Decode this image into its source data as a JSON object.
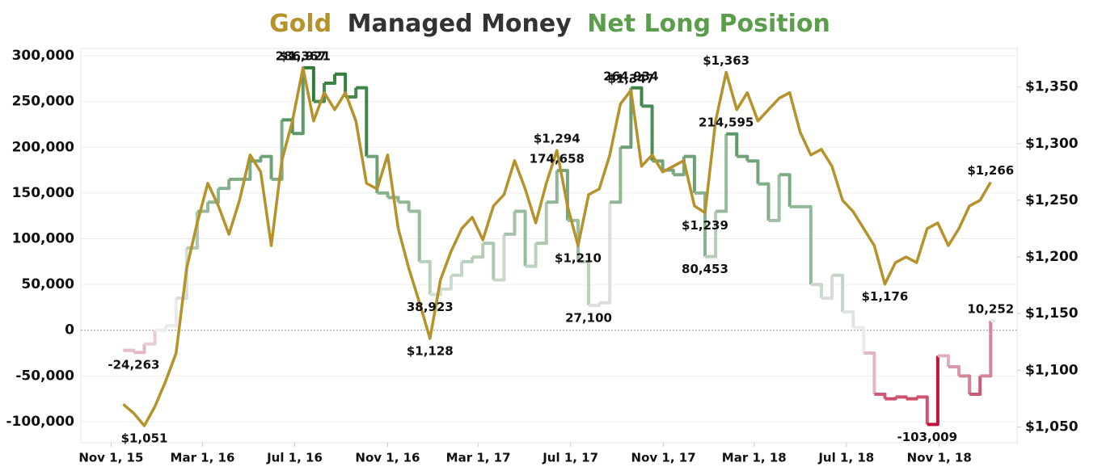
{
  "chart_data": {
    "type": "line",
    "title_parts": [
      {
        "text": "Gold",
        "color": "#b5922a"
      },
      {
        "text": "Managed Money",
        "color": "#333333"
      },
      {
        "text": "Net Long Position",
        "color": "#5a9e4b"
      }
    ],
    "x": [
      "2015-11-17",
      "2015-12-01",
      "2015-12-15",
      "2015-12-29",
      "2016-01-12",
      "2016-01-26",
      "2016-02-09",
      "2016-02-23",
      "2016-03-08",
      "2016-03-22",
      "2016-04-05",
      "2016-04-19",
      "2016-05-03",
      "2016-05-17",
      "2016-05-31",
      "2016-06-14",
      "2016-06-28",
      "2016-07-12",
      "2016-07-26",
      "2016-08-09",
      "2016-08-23",
      "2016-09-06",
      "2016-09-20",
      "2016-10-04",
      "2016-10-18",
      "2016-11-01",
      "2016-11-15",
      "2016-11-29",
      "2016-12-13",
      "2016-12-27",
      "2017-01-10",
      "2017-01-24",
      "2017-02-07",
      "2017-02-21",
      "2017-03-07",
      "2017-03-21",
      "2017-04-04",
      "2017-04-18",
      "2017-05-02",
      "2017-05-16",
      "2017-05-30",
      "2017-06-13",
      "2017-06-27",
      "2017-07-11",
      "2017-07-25",
      "2017-08-08",
      "2017-08-22",
      "2017-09-05",
      "2017-09-19",
      "2017-10-03",
      "2017-10-17",
      "2017-10-31",
      "2017-11-14",
      "2017-11-28",
      "2017-12-12",
      "2017-12-26",
      "2018-01-09",
      "2018-01-23",
      "2018-02-06",
      "2018-02-20",
      "2018-03-06",
      "2018-03-20",
      "2018-04-03",
      "2018-04-17",
      "2018-05-01",
      "2018-05-15",
      "2018-05-29",
      "2018-06-12",
      "2018-06-26",
      "2018-07-10",
      "2018-07-24",
      "2018-08-07",
      "2018-08-21",
      "2018-09-04",
      "2018-09-18",
      "2018-10-02",
      "2018-10-16",
      "2018-10-30",
      "2018-11-13",
      "2018-11-27",
      "2018-12-11",
      "2018-12-25",
      "2019-01-08"
    ],
    "xlim": [
      "2015-09-22",
      "2019-02-12"
    ],
    "xticks": [
      {
        "value": "2015-11-01",
        "label": "Nov 1, 15"
      },
      {
        "value": "2016-03-01",
        "label": "Mar 1, 16"
      },
      {
        "value": "2016-07-01",
        "label": "Jul 1, 16"
      },
      {
        "value": "2016-11-01",
        "label": "Nov 1, 16"
      },
      {
        "value": "2017-03-01",
        "label": "Mar 1, 17"
      },
      {
        "value": "2017-07-01",
        "label": "Jul 1, 17"
      },
      {
        "value": "2017-11-01",
        "label": "Nov 1, 17"
      },
      {
        "value": "2018-03-01",
        "label": "Mar 1, 18"
      },
      {
        "value": "2018-07-01",
        "label": "Jul 1, 18"
      },
      {
        "value": "2018-11-01",
        "label": "Nov 1, 18"
      }
    ],
    "ylim": [
      -123000,
      308000
    ],
    "yticks": [
      {
        "value": -100000,
        "label": "-100,000"
      },
      {
        "value": -50000,
        "label": "-50,000"
      },
      0,
      {
        "value": 50000,
        "label": "50,000"
      },
      {
        "value": 100000,
        "label": "100,000"
      },
      {
        "value": 150000,
        "label": "150,000"
      },
      {
        "value": 200000,
        "label": "200,000"
      },
      {
        "value": 250000,
        "label": "250,000"
      },
      {
        "value": 300000,
        "label": "300,000"
      }
    ],
    "y2lim": [
      1036,
      1384
    ],
    "y2ticks": [
      {
        "value": 1050,
        "label": "$1,050"
      },
      {
        "value": 1100,
        "label": "$1,100"
      },
      {
        "value": 1150,
        "label": "$1,150"
      },
      {
        "value": 1200,
        "label": "$1,200"
      },
      {
        "value": 1250,
        "label": "$1,250"
      },
      {
        "value": 1300,
        "label": "$1,300"
      },
      {
        "value": 1350,
        "label": "$1,350"
      }
    ],
    "series": [
      {
        "name": "Net Long Position",
        "step": true,
        "color_scale": [
          "#c0143c",
          "#ececec",
          "#2e7d3a"
        ],
        "values": [
          -22000,
          -24263,
          -15000,
          0,
          5000,
          35000,
          90000,
          130000,
          140000,
          155000,
          165000,
          165000,
          185000,
          190000,
          165000,
          230000,
          215000,
          286921,
          250000,
          270000,
          280000,
          255000,
          265000,
          190000,
          150000,
          145000,
          140000,
          130000,
          75000,
          38923,
          45000,
          60000,
          75000,
          80000,
          95000,
          55000,
          105000,
          130000,
          70000,
          95000,
          140000,
          174658,
          120000,
          75000,
          27100,
          30000,
          140000,
          200000,
          264934,
          245000,
          185000,
          175000,
          170000,
          190000,
          150000,
          80453,
          130000,
          214595,
          190000,
          185000,
          160000,
          120000,
          170000,
          135000,
          135000,
          50000,
          35000,
          60000,
          20000,
          3000,
          -25000,
          -70000,
          -75000,
          -73000,
          -75000,
          -73000,
          -103009,
          -28000,
          -40000,
          -50000,
          -70000,
          -50000,
          10252
        ],
        "value_labels": [
          null,
          "-24,263",
          null,
          null,
          null,
          null,
          null,
          null,
          null,
          null,
          null,
          null,
          null,
          null,
          null,
          null,
          null,
          "286,921",
          null,
          null,
          null,
          null,
          null,
          null,
          null,
          null,
          null,
          null,
          null,
          "38,923",
          null,
          null,
          null,
          null,
          null,
          null,
          null,
          null,
          null,
          null,
          null,
          "174,658",
          null,
          null,
          "27,100",
          null,
          null,
          null,
          "264,934",
          null,
          null,
          null,
          null,
          null,
          null,
          "80,453",
          null,
          "214,595",
          null,
          null,
          null,
          null,
          null,
          null,
          null,
          null,
          null,
          null,
          null,
          null,
          null,
          null,
          null,
          null,
          null,
          null,
          "-103,009",
          null,
          null,
          null,
          null,
          null,
          "10,252"
        ]
      },
      {
        "name": "Gold",
        "axis": "y2",
        "color": "#b5922a",
        "values": [
          1070,
          1062,
          1051,
          1068,
          1090,
          1115,
          1190,
          1230,
          1265,
          1245,
          1220,
          1250,
          1290,
          1275,
          1210,
          1285,
          1320,
          1367,
          1320,
          1345,
          1330,
          1345,
          1320,
          1265,
          1260,
          1290,
          1225,
          1190,
          1160,
          1128,
          1180,
          1205,
          1225,
          1235,
          1215,
          1245,
          1255,
          1285,
          1260,
          1230,
          1265,
          1294,
          1245,
          1210,
          1255,
          1260,
          1290,
          1335,
          1347,
          1280,
          1290,
          1275,
          1280,
          1285,
          1245,
          1239,
          1320,
          1363,
          1330,
          1345,
          1320,
          1330,
          1340,
          1345,
          1310,
          1290,
          1295,
          1280,
          1250,
          1240,
          1225,
          1210,
          1176,
          1195,
          1200,
          1195,
          1225,
          1230,
          1210,
          1225,
          1245,
          1250,
          1266
        ],
        "value_labels": [
          null,
          null,
          "$1,051",
          null,
          null,
          null,
          null,
          null,
          null,
          null,
          null,
          null,
          null,
          null,
          null,
          null,
          null,
          "$1,367",
          null,
          null,
          null,
          null,
          null,
          null,
          null,
          null,
          null,
          null,
          null,
          "$1,128",
          null,
          null,
          null,
          null,
          null,
          null,
          null,
          null,
          null,
          null,
          null,
          "$1,294",
          null,
          "$1,210",
          null,
          null,
          null,
          null,
          "$1,347",
          null,
          null,
          null,
          null,
          null,
          null,
          "$1,239",
          null,
          "$1,363",
          null,
          null,
          null,
          null,
          null,
          null,
          null,
          null,
          null,
          null,
          null,
          null,
          null,
          null,
          "$1,176",
          null,
          null,
          null,
          null,
          null,
          null,
          null,
          null,
          null,
          "$1,266"
        ]
      }
    ]
  }
}
